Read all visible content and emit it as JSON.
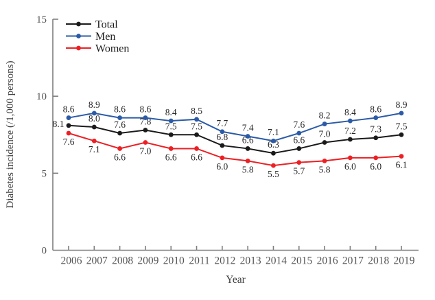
{
  "chart_data": {
    "type": "line",
    "title": "",
    "xlabel": "Year",
    "ylabel": "Diabetes incidence (/1,000 persons)",
    "categories": [
      "2006",
      "2007",
      "2008",
      "2009",
      "2010",
      "2011",
      "2012",
      "2013",
      "2014",
      "2015",
      "2016",
      "2017",
      "2018",
      "2019"
    ],
    "ylim": [
      0,
      15
    ],
    "yticks": [
      0,
      5,
      10,
      15
    ],
    "grid": false,
    "legend_position": "top-left-inside",
    "point_labels_shown": true,
    "series": [
      {
        "name": "Total",
        "color": "#1a1a1a",
        "values": [
          8.1,
          8.0,
          7.6,
          7.8,
          7.5,
          7.5,
          6.8,
          6.6,
          6.3,
          6.6,
          7.0,
          7.2,
          7.3,
          7.5
        ],
        "label_position": "above",
        "label_overrides": {
          "0": {
            "dx": -15,
            "dy": 2
          }
        }
      },
      {
        "name": "Men",
        "color": "#2b5ba7",
        "values": [
          8.6,
          8.9,
          8.6,
          8.6,
          8.4,
          8.5,
          7.7,
          7.4,
          7.1,
          7.6,
          8.2,
          8.4,
          8.6,
          8.9
        ],
        "label_position": "above",
        "label_overrides": {}
      },
      {
        "name": "Women",
        "color": "#ec2024",
        "values": [
          7.6,
          7.1,
          6.6,
          7.0,
          6.6,
          6.6,
          6.0,
          5.8,
          5.5,
          5.7,
          5.8,
          6.0,
          6.0,
          6.1
        ],
        "label_position": "below",
        "label_overrides": {}
      }
    ],
    "colors": {
      "axis": "#7f7f7f",
      "tick_label": "#555555",
      "axis_title": "#3f3f3f",
      "data_label": "#262626",
      "legend_label": "#1a1a1a",
      "background": "#ffffff"
    }
  }
}
